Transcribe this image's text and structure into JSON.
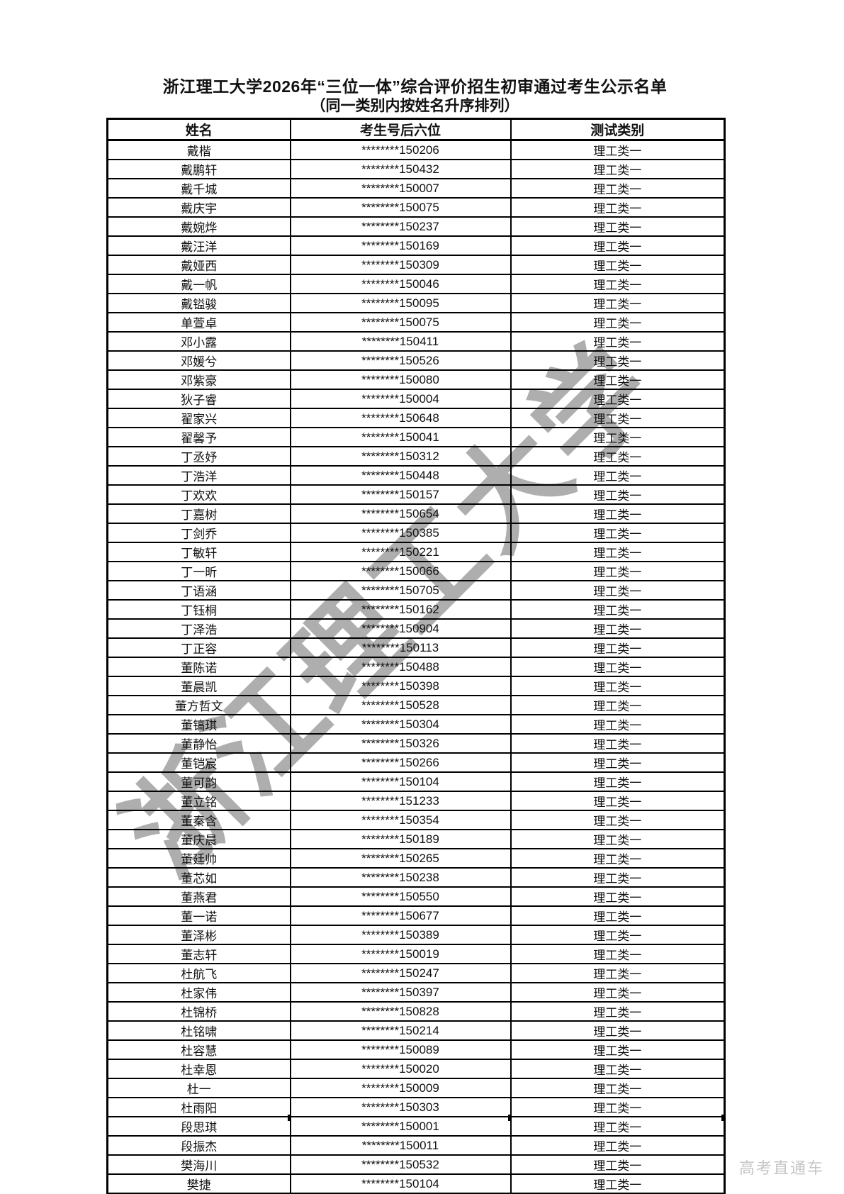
{
  "page": {
    "title": "浙江理工大学2026年“三位一体”综合评价招生初审通过考生公示名单",
    "subtitle": "（同一类别内按姓名升序排列）",
    "watermark": "浙江理工大学",
    "footer_watermark": "高考直通车"
  },
  "colors": {
    "border": "#000000",
    "text": "#111111",
    "watermark": "#8f8f8f",
    "footer_watermark": "#c6c6c6"
  },
  "table": {
    "columns": [
      "姓名",
      "考生号后六位",
      "测试类别"
    ],
    "rows": [
      {
        "name": "戴楷",
        "number": "********150206",
        "category": "理工类一"
      },
      {
        "name": "戴鹏轩",
        "number": "********150432",
        "category": "理工类一"
      },
      {
        "name": "戴千城",
        "number": "********150007",
        "category": "理工类一"
      },
      {
        "name": "戴庆宇",
        "number": "********150075",
        "category": "理工类一"
      },
      {
        "name": "戴婉烨",
        "number": "********150237",
        "category": "理工类一"
      },
      {
        "name": "戴汪洋",
        "number": "********150169",
        "category": "理工类一"
      },
      {
        "name": "戴娅西",
        "number": "********150309",
        "category": "理工类一"
      },
      {
        "name": "戴一帆",
        "number": "********150046",
        "category": "理工类一"
      },
      {
        "name": "戴镒骏",
        "number": "********150095",
        "category": "理工类一"
      },
      {
        "name": "单萱卓",
        "number": "********150075",
        "category": "理工类一"
      },
      {
        "name": "邓小露",
        "number": "********150411",
        "category": "理工类一"
      },
      {
        "name": "邓媛兮",
        "number": "********150526",
        "category": "理工类一"
      },
      {
        "name": "邓紫豪",
        "number": "********150080",
        "category": "理工类一"
      },
      {
        "name": "狄子睿",
        "number": "********150004",
        "category": "理工类一"
      },
      {
        "name": "翟家兴",
        "number": "********150648",
        "category": "理工类一"
      },
      {
        "name": "翟馨予",
        "number": "********150041",
        "category": "理工类一"
      },
      {
        "name": "丁丞妤",
        "number": "********150312",
        "category": "理工类一"
      },
      {
        "name": "丁浩洋",
        "number": "********150448",
        "category": "理工类一"
      },
      {
        "name": "丁欢欢",
        "number": "********150157",
        "category": "理工类一"
      },
      {
        "name": "丁嘉树",
        "number": "********150654",
        "category": "理工类一"
      },
      {
        "name": "丁剑乔",
        "number": "********150385",
        "category": "理工类一"
      },
      {
        "name": "丁敏轩",
        "number": "********150221",
        "category": "理工类一"
      },
      {
        "name": "丁一昕",
        "number": "********150066",
        "category": "理工类一"
      },
      {
        "name": "丁语涵",
        "number": "********150705",
        "category": "理工类一"
      },
      {
        "name": "丁钰桐",
        "number": "********150162",
        "category": "理工类一"
      },
      {
        "name": "丁泽浩",
        "number": "********150904",
        "category": "理工类一"
      },
      {
        "name": "丁正容",
        "number": "********150113",
        "category": "理工类一"
      },
      {
        "name": "董陈诺",
        "number": "********150488",
        "category": "理工类一"
      },
      {
        "name": "董晨凯",
        "number": "********150398",
        "category": "理工类一"
      },
      {
        "name": "董方哲文",
        "number": "********150528",
        "category": "理工类一"
      },
      {
        "name": "董镐琪",
        "number": "********150304",
        "category": "理工类一"
      },
      {
        "name": "董静怡",
        "number": "********150326",
        "category": "理工类一"
      },
      {
        "name": "董铠宸",
        "number": "********150266",
        "category": "理工类一"
      },
      {
        "name": "董可韵",
        "number": "********150104",
        "category": "理工类一"
      },
      {
        "name": "董立铭",
        "number": "********151233",
        "category": "理工类一"
      },
      {
        "name": "董秦含",
        "number": "********150354",
        "category": "理工类一"
      },
      {
        "name": "董庆晨",
        "number": "********150189",
        "category": "理工类一"
      },
      {
        "name": "董廷帅",
        "number": "********150265",
        "category": "理工类一"
      },
      {
        "name": "董芯如",
        "number": "********150238",
        "category": "理工类一"
      },
      {
        "name": "董燕君",
        "number": "********150550",
        "category": "理工类一"
      },
      {
        "name": "董一诺",
        "number": "********150677",
        "category": "理工类一"
      },
      {
        "name": "董泽彬",
        "number": "********150389",
        "category": "理工类一"
      },
      {
        "name": "董志轩",
        "number": "********150019",
        "category": "理工类一"
      },
      {
        "name": "杜航飞",
        "number": "********150247",
        "category": "理工类一"
      },
      {
        "name": "杜家伟",
        "number": "********150397",
        "category": "理工类一"
      },
      {
        "name": "杜锦桥",
        "number": "********150828",
        "category": "理工类一"
      },
      {
        "name": "杜铭啸",
        "number": "********150214",
        "category": "理工类一"
      },
      {
        "name": "杜容慧",
        "number": "********150089",
        "category": "理工类一"
      },
      {
        "name": "杜幸恩",
        "number": "********150020",
        "category": "理工类一"
      },
      {
        "name": "杜一",
        "number": "********150009",
        "category": "理工类一"
      },
      {
        "name": "杜雨阳",
        "number": "********150303",
        "category": "理工类一"
      },
      {
        "name": "段思琪",
        "number": "********150001",
        "category": "理工类一"
      },
      {
        "name": "段振杰",
        "number": "********150011",
        "category": "理工类一"
      },
      {
        "name": "樊海川",
        "number": "********150532",
        "category": "理工类一"
      },
      {
        "name": "樊捷",
        "number": "********150104",
        "category": "理工类一"
      }
    ]
  }
}
